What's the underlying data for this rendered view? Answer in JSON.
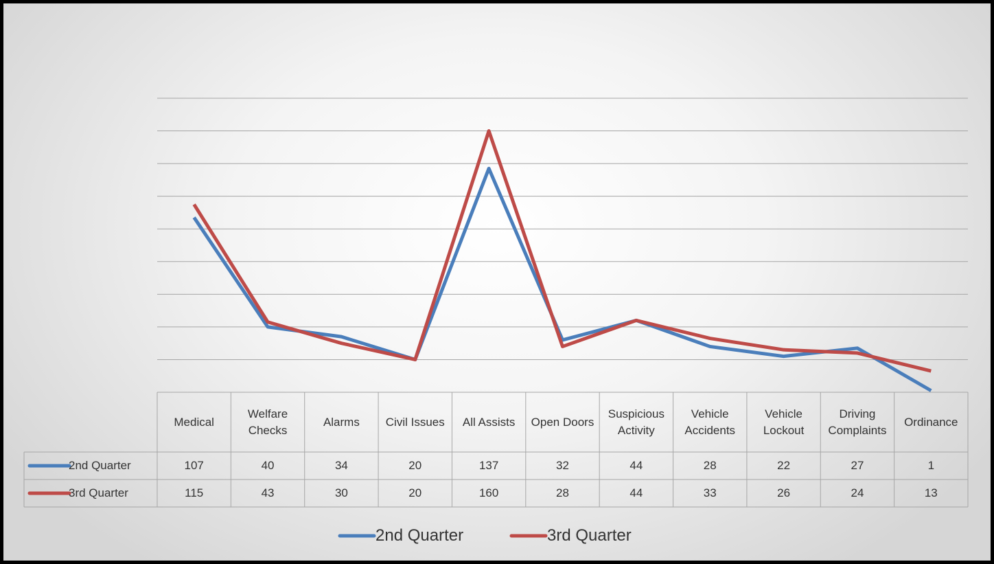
{
  "chart_data": {
    "type": "line",
    "categories": [
      "Medical",
      "Welfare Checks",
      "Alarms",
      "Civil Issues",
      "All Assists",
      "Open Doors",
      "Suspicious Activity",
      "Vehicle Accidents",
      "Vehicle Lockout",
      "Driving Complaints",
      "Ordinance"
    ],
    "series": [
      {
        "name": "2nd Quarter",
        "color": "#4a7ebb",
        "values": [
          107,
          40,
          34,
          20,
          137,
          32,
          44,
          28,
          22,
          27,
          1
        ]
      },
      {
        "name": "3rd Quarter",
        "color": "#be4b48",
        "values": [
          115,
          43,
          30,
          20,
          160,
          28,
          44,
          33,
          26,
          24,
          13
        ]
      }
    ],
    "ylim": [
      0,
      180
    ],
    "yticks": [
      0,
      20,
      40,
      60,
      80,
      100,
      120,
      140,
      160,
      180
    ],
    "grid": true,
    "legend": "bottom"
  }
}
